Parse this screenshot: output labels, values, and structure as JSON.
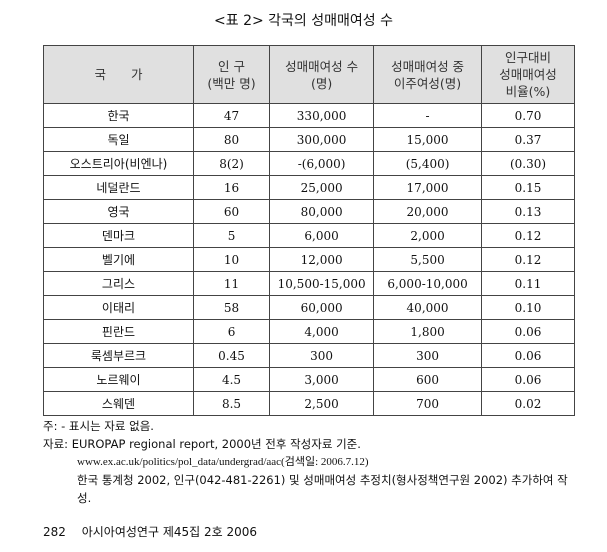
{
  "title": "<표 2> 각국의 성매매여성 수",
  "headers": [
    "국　　가",
    "인 구\n(백만 명)",
    "성매매여성 수\n(명)",
    "성매매여성 중\n이주여성(명)",
    "인구대비\n성매매여성\n비율(%)"
  ],
  "rows": [
    [
      "한국",
      "47",
      "330,000",
      "-",
      "0.70"
    ],
    [
      "독일",
      "80",
      "300,000",
      "15,000",
      "0.37"
    ],
    [
      "오스트리아(비엔나)",
      "8(2)",
      "-(6,000)",
      "(5,400)",
      "(0.30)"
    ],
    [
      "네덜란드",
      "16",
      "25,000",
      "17,000",
      "0.15"
    ],
    [
      "영국",
      "60",
      "80,000",
      "20,000",
      "0.13"
    ],
    [
      "덴마크",
      "5",
      "6,000",
      "2,000",
      "0.12"
    ],
    [
      "벨기에",
      "10",
      "12,000",
      "5,500",
      "0.12"
    ],
    [
      "그리스",
      "11",
      "10,500-15,000",
      "6,000-10,000",
      "0.11"
    ],
    [
      "이태리",
      "58",
      "60,000",
      "40,000",
      "0.10"
    ],
    [
      "핀란드",
      "6",
      "4,000",
      "1,800",
      "0.06"
    ],
    [
      "룩셈부르크",
      "0.45",
      "300",
      "300",
      "0.06"
    ],
    [
      "노르웨이",
      "4.5",
      "3,000",
      "600",
      "0.06"
    ],
    [
      "스웨덴",
      "8.5",
      "2,500",
      "700",
      "0.02"
    ]
  ],
  "notes": {
    "note": "주: - 표시는 자료 없음.",
    "source1": "자료: EUROPAP regional report, 2000년 전후 작성자료 기준.",
    "source2": "www.ex.ac.uk/politics/pol_data/undergrad/aac(검색일: 2006.7.12)",
    "source3": "한국 통계청 2002, 인구(042-481-2261) 및 성매매여성 추정치(형사정책연구원 2002) 추가하여 작성."
  },
  "footer": "282　 아시아여성연구 제45집 2호 2006"
}
